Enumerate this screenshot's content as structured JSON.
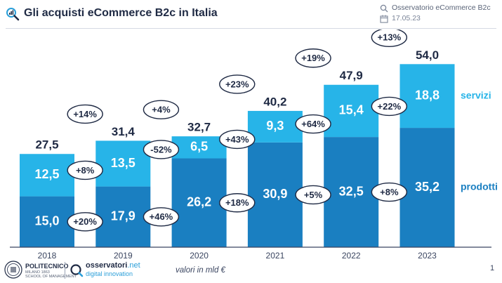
{
  "header": {
    "title": "Gli acquisti eCommerce B2c in Italia",
    "source": "Osservatorio eCommerce B2c",
    "date": "17.05.23"
  },
  "footer": {
    "institution_name": "POLITECNICO",
    "institution_sub": "MILANO 1863",
    "institution_school": "SCHOOL OF MANAGEMENT",
    "brand_name": "osservatori",
    "brand_suffix": ".net",
    "brand_sub": "digital innovation",
    "unit_note": "valori in mld €",
    "page_number": "1"
  },
  "colors": {
    "prodotti": "#1a7fc1",
    "servizi": "#27b4e8",
    "label_dark": "#1f2a44",
    "bubble_border": "#1f2a44"
  },
  "chart_data": {
    "type": "bar",
    "stacked": true,
    "categories": [
      "2018",
      "2019",
      "2020",
      "2021",
      "2022",
      "2023"
    ],
    "series": [
      {
        "name": "prodotti",
        "values": [
          15.0,
          17.9,
          26.2,
          30.9,
          32.5,
          35.2
        ]
      },
      {
        "name": "servizi",
        "values": [
          12.5,
          13.5,
          6.5,
          9.3,
          15.4,
          18.8
        ]
      }
    ],
    "totals": [
      27.5,
      31.4,
      32.7,
      40.2,
      47.9,
      54.0
    ],
    "total_labels": [
      "27,5",
      "31,4",
      "32,7",
      "40,2",
      "47,9",
      "54,0"
    ],
    "prodotti_labels": [
      "15,0",
      "17,9",
      "26,2",
      "30,9",
      "32,5",
      "35,2"
    ],
    "servizi_labels": [
      "12,5",
      "13,5",
      "6,5",
      "9,3",
      "15,4",
      "18,8"
    ],
    "growth_total": [
      "+14%",
      "+4%",
      "+23%",
      "+19%",
      "+13%"
    ],
    "growth_servizi": [
      "+8%",
      "-52%",
      "+43%",
      "+64%",
      "+22%"
    ],
    "growth_prodotti": [
      "+20%",
      "+46%",
      "+18%",
      "+5%",
      "+8%"
    ],
    "legend": {
      "servizi": "servizi",
      "prodotti": "prodotti"
    },
    "ylim": [
      0,
      58
    ],
    "grid": false,
    "legend_position": "right"
  }
}
